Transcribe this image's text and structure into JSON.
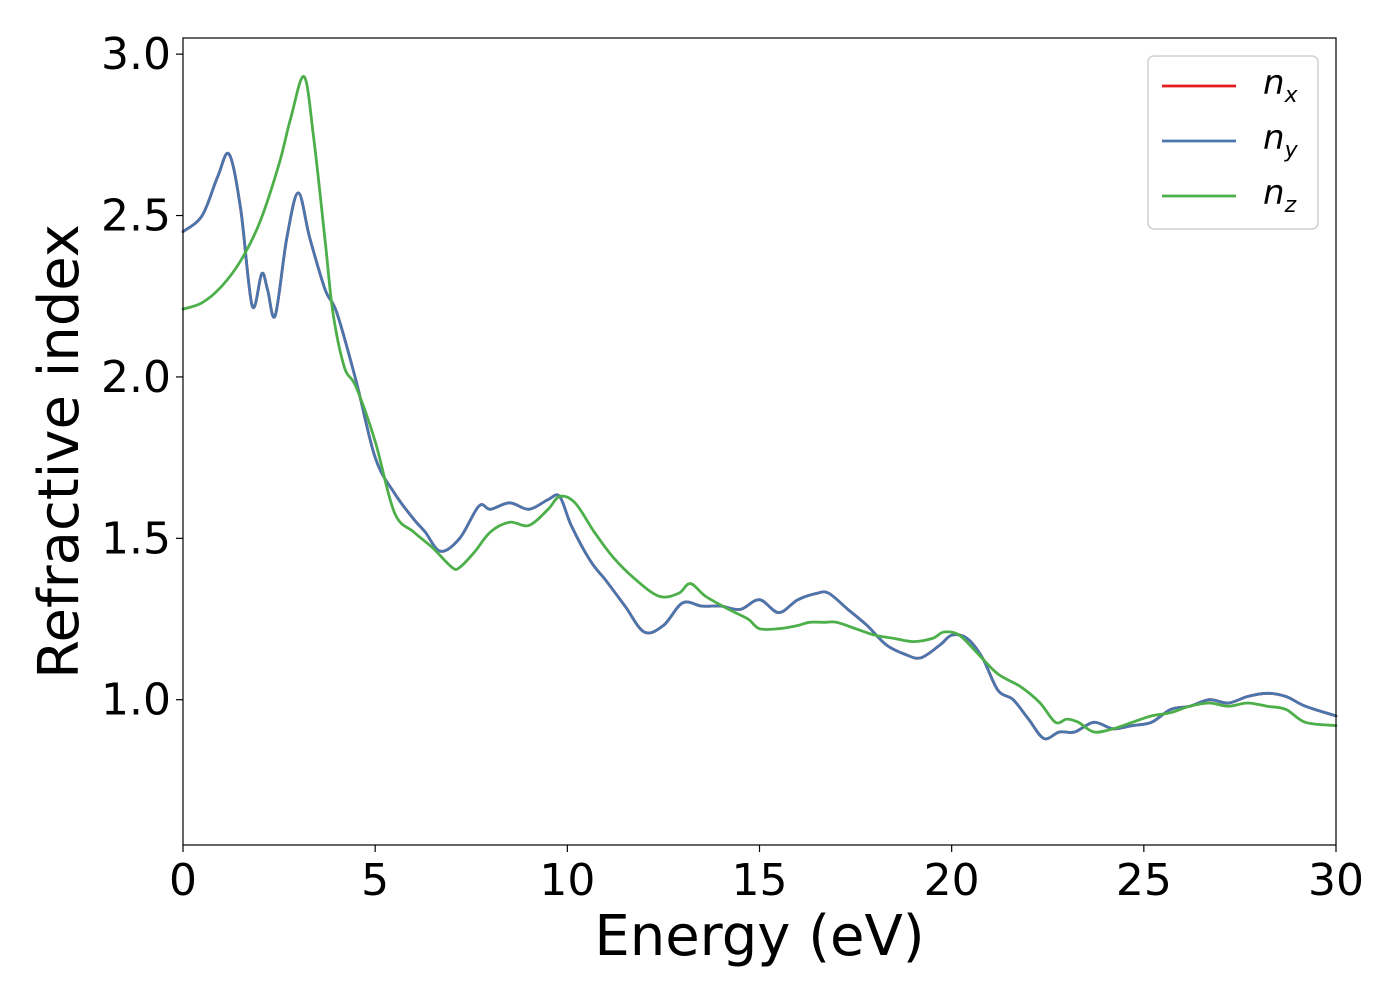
{
  "chart_data": {
    "type": "line",
    "title": "",
    "xlabel": "Energy (eV)",
    "ylabel": "Refractive index",
    "xlim": [
      0,
      30
    ],
    "ylim": [
      0.55,
      3.05
    ],
    "xticks": [
      "0",
      "5",
      "10",
      "15",
      "20",
      "25",
      "30"
    ],
    "yticks": [
      "1.0",
      "1.5",
      "2.0",
      "2.5",
      "3.0"
    ],
    "xtick_values": [
      0,
      5,
      10,
      15,
      20,
      25,
      30
    ],
    "ytick_values": [
      1.0,
      1.5,
      2.0,
      2.5,
      3.0
    ],
    "grid": false,
    "legend_position": "top-right",
    "series": [
      {
        "name": "n_x",
        "label_main": "n",
        "label_sub": "x",
        "color": "#e41a1c",
        "x": [
          0,
          0.5,
          0.9,
          1.2,
          1.5,
          1.8,
          2.05,
          2.2,
          2.4,
          2.7,
          3.0,
          3.3,
          3.7,
          4.0,
          4.5,
          5.0,
          5.5,
          6.0,
          6.3,
          6.7,
          7.2,
          7.7,
          8.0,
          8.5,
          9.0,
          9.5,
          9.8,
          10.1,
          10.6,
          11.0,
          11.5,
          12.0,
          12.5,
          13.0,
          13.5,
          14.0,
          14.5,
          15.0,
          15.5,
          16.0,
          16.5,
          16.8,
          17.3,
          17.8,
          18.3,
          18.8,
          19.2,
          19.7,
          20.0,
          20.4,
          20.8,
          21.2,
          21.6,
          22.0,
          22.4,
          22.8,
          23.2,
          23.7,
          24.2,
          24.7,
          25.2,
          25.7,
          26.2,
          26.7,
          27.2,
          27.7,
          28.2,
          28.7,
          29.2,
          30.0
        ],
        "y": [
          2.45,
          2.5,
          2.62,
          2.69,
          2.52,
          2.22,
          2.32,
          2.27,
          2.19,
          2.43,
          2.57,
          2.43,
          2.27,
          2.2,
          1.99,
          1.75,
          1.64,
          1.56,
          1.52,
          1.46,
          1.5,
          1.6,
          1.59,
          1.61,
          1.59,
          1.62,
          1.63,
          1.54,
          1.43,
          1.37,
          1.29,
          1.21,
          1.23,
          1.3,
          1.29,
          1.29,
          1.28,
          1.31,
          1.27,
          1.31,
          1.33,
          1.33,
          1.28,
          1.23,
          1.17,
          1.14,
          1.13,
          1.17,
          1.2,
          1.19,
          1.13,
          1.03,
          1.0,
          0.94,
          0.88,
          0.9,
          0.9,
          0.93,
          0.91,
          0.92,
          0.93,
          0.97,
          0.98,
          1.0,
          0.99,
          1.01,
          1.02,
          1.01,
          0.98,
          0.95
        ]
      },
      {
        "name": "n_y",
        "label_main": "n",
        "label_sub": "y",
        "color": "#4a76ae",
        "x": [
          0,
          0.5,
          0.9,
          1.2,
          1.5,
          1.8,
          2.05,
          2.2,
          2.4,
          2.7,
          3.0,
          3.3,
          3.7,
          4.0,
          4.5,
          5.0,
          5.5,
          6.0,
          6.3,
          6.7,
          7.2,
          7.7,
          8.0,
          8.5,
          9.0,
          9.5,
          9.8,
          10.1,
          10.6,
          11.0,
          11.5,
          12.0,
          12.5,
          13.0,
          13.5,
          14.0,
          14.5,
          15.0,
          15.5,
          16.0,
          16.5,
          16.8,
          17.3,
          17.8,
          18.3,
          18.8,
          19.2,
          19.7,
          20.0,
          20.4,
          20.8,
          21.2,
          21.6,
          22.0,
          22.4,
          22.8,
          23.2,
          23.7,
          24.2,
          24.7,
          25.2,
          25.7,
          26.2,
          26.7,
          27.2,
          27.7,
          28.2,
          28.7,
          29.2,
          30.0
        ],
        "y": [
          2.45,
          2.5,
          2.62,
          2.69,
          2.52,
          2.22,
          2.32,
          2.27,
          2.19,
          2.43,
          2.57,
          2.43,
          2.27,
          2.2,
          1.99,
          1.75,
          1.64,
          1.56,
          1.52,
          1.46,
          1.5,
          1.6,
          1.59,
          1.61,
          1.59,
          1.62,
          1.63,
          1.54,
          1.43,
          1.37,
          1.29,
          1.21,
          1.23,
          1.3,
          1.29,
          1.29,
          1.28,
          1.31,
          1.27,
          1.31,
          1.33,
          1.33,
          1.28,
          1.23,
          1.17,
          1.14,
          1.13,
          1.17,
          1.2,
          1.19,
          1.13,
          1.03,
          1.0,
          0.94,
          0.88,
          0.9,
          0.9,
          0.93,
          0.91,
          0.92,
          0.93,
          0.97,
          0.98,
          1.0,
          0.99,
          1.01,
          1.02,
          1.01,
          0.98,
          0.95
        ]
      },
      {
        "name": "n_z",
        "label_main": "n",
        "label_sub": "z",
        "color": "#4daf4a",
        "x": [
          0,
          0.5,
          1.0,
          1.5,
          2.0,
          2.5,
          2.8,
          3.15,
          3.4,
          3.7,
          3.9,
          4.2,
          4.5,
          5.0,
          5.5,
          6.0,
          6.5,
          7.0,
          7.2,
          7.6,
          8.0,
          8.5,
          9.0,
          9.5,
          9.8,
          10.2,
          10.7,
          11.2,
          11.8,
          12.4,
          12.9,
          13.2,
          13.6,
          14.2,
          14.7,
          15.0,
          15.5,
          16.0,
          16.3,
          16.7,
          17.0,
          17.5,
          18.0,
          18.5,
          19.0,
          19.5,
          19.8,
          20.2,
          20.7,
          21.2,
          21.8,
          22.3,
          22.7,
          23.0,
          23.3,
          23.7,
          24.2,
          24.7,
          25.2,
          25.7,
          26.2,
          26.7,
          27.2,
          27.7,
          28.2,
          28.7,
          29.2,
          30.0
        ],
        "y": [
          2.21,
          2.23,
          2.28,
          2.36,
          2.48,
          2.66,
          2.8,
          2.93,
          2.74,
          2.42,
          2.2,
          2.03,
          1.97,
          1.8,
          1.58,
          1.52,
          1.47,
          1.41,
          1.41,
          1.46,
          1.52,
          1.55,
          1.54,
          1.59,
          1.63,
          1.61,
          1.52,
          1.44,
          1.37,
          1.32,
          1.33,
          1.36,
          1.32,
          1.28,
          1.25,
          1.22,
          1.22,
          1.23,
          1.24,
          1.24,
          1.24,
          1.22,
          1.2,
          1.19,
          1.18,
          1.19,
          1.21,
          1.2,
          1.14,
          1.08,
          1.04,
          0.99,
          0.93,
          0.94,
          0.93,
          0.9,
          0.91,
          0.93,
          0.95,
          0.96,
          0.98,
          0.99,
          0.98,
          0.99,
          0.98,
          0.97,
          0.93,
          0.92
        ]
      }
    ]
  }
}
